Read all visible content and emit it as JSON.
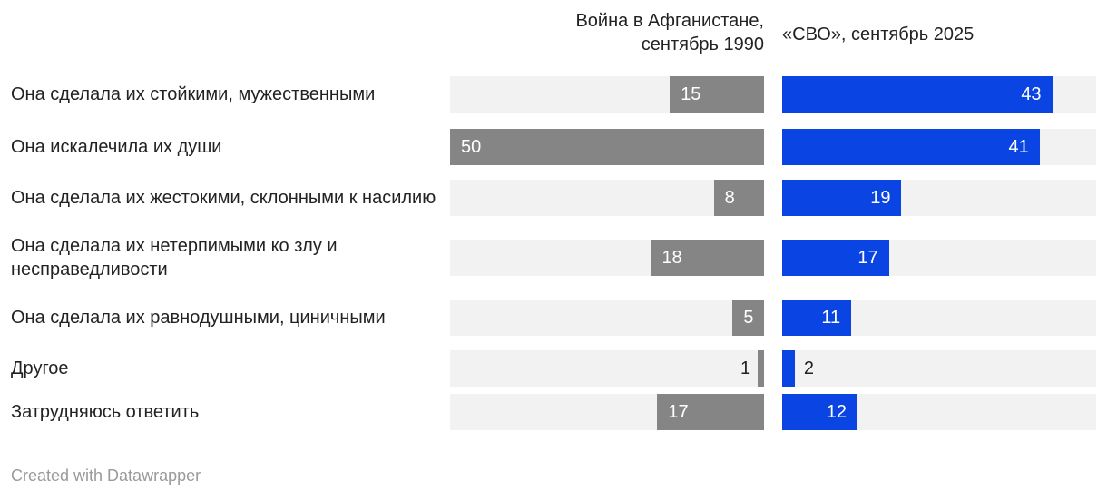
{
  "chart_data": {
    "type": "split-bar",
    "categories": [
      "Она сделала их стойкими, мужественными",
      "Она искалечила их души",
      "Она сделала их жестокими, склонными к насилию",
      "Она сделала их нетерпимыми ко злу и несправедливости",
      "Она сделала их равнодушными, циничными",
      "Другое",
      "Затрудняюсь ответить"
    ],
    "series": [
      {
        "name": "Война в Афганистане, сентябрь 1990",
        "color": "#858585",
        "values": [
          15,
          50,
          8,
          18,
          5,
          1,
          17
        ]
      },
      {
        "name": "«СВО», сентябрь 2025",
        "color": "#0a45e3",
        "values": [
          43,
          41,
          19,
          17,
          11,
          2,
          12
        ]
      }
    ],
    "xlim": [
      0,
      50
    ],
    "footer": "Created with Datawrapper"
  }
}
